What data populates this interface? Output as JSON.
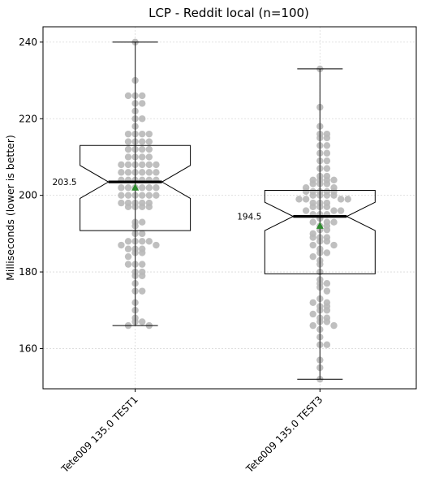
{
  "chart_data": {
    "type": "box",
    "title": "LCP - Reddit local  (n=100)",
    "ylabel": "Milliseconds (lower is better)",
    "xlabel": "",
    "ylim": [
      149.5,
      244
    ],
    "yticks": [
      160,
      180,
      200,
      220,
      240
    ],
    "grid": true,
    "colors": {
      "points": "#b8b8b8",
      "mean": "#2e8b2e",
      "box": "#000000",
      "median": "#000000"
    },
    "series": [
      {
        "name": "Tete009 135.0 TEST1",
        "whisker_low": 166,
        "q1": 190.8,
        "median": 203.5,
        "q3": 213,
        "whisker_high": 240,
        "notch_low": 199.2,
        "notch_high": 207.8,
        "mean": 202,
        "median_label": "203.5",
        "points": [
          240,
          230,
          226,
          226,
          226,
          224,
          224,
          222,
          220,
          220,
          218,
          216,
          216,
          216,
          216,
          214,
          214,
          214,
          214,
          212,
          212,
          212,
          212,
          210,
          210,
          210,
          210,
          208,
          208,
          208,
          208,
          208,
          208,
          206,
          206,
          206,
          206,
          206,
          206,
          204,
          204,
          204,
          204,
          204,
          204,
          202,
          202,
          202,
          202,
          202,
          202,
          200,
          200,
          200,
          200,
          200,
          200,
          198,
          198,
          198,
          198,
          198,
          197,
          197,
          197,
          197,
          193,
          193,
          192,
          190,
          190,
          188,
          188,
          188,
          188,
          187,
          187,
          186,
          186,
          186,
          185,
          185,
          184,
          182,
          182,
          182,
          180,
          180,
          179,
          179,
          177,
          175,
          175,
          172,
          170,
          168,
          167,
          167,
          166,
          166
        ]
      },
      {
        "name": "Tete009 135.0 TEST3",
        "whisker_low": 152,
        "q1": 179.5,
        "median": 194.5,
        "q3": 201.3,
        "whisker_high": 233,
        "notch_low": 190.8,
        "notch_high": 198.2,
        "mean": 192,
        "median_label": "194.5",
        "points": [
          233,
          223,
          218,
          216,
          216,
          215,
          215,
          213,
          213,
          211,
          211,
          209,
          209,
          207,
          207,
          205,
          205,
          204,
          204,
          204,
          204,
          203,
          203,
          203,
          202,
          202,
          201,
          201,
          201,
          201,
          201,
          200,
          200,
          200,
          200,
          199,
          199,
          199,
          199,
          198,
          198,
          198,
          197,
          197,
          197,
          196,
          196,
          196,
          195,
          195,
          195,
          194,
          193,
          193,
          193,
          192,
          192,
          191,
          191,
          190,
          189,
          189,
          189,
          188,
          188,
          187,
          187,
          186,
          185,
          185,
          184,
          183,
          182,
          180,
          178,
          177,
          177,
          176,
          175,
          173,
          172,
          172,
          171,
          171,
          170,
          170,
          169,
          168,
          168,
          167,
          167,
          166,
          166,
          165,
          163,
          161,
          161,
          157,
          155,
          152
        ]
      }
    ]
  }
}
